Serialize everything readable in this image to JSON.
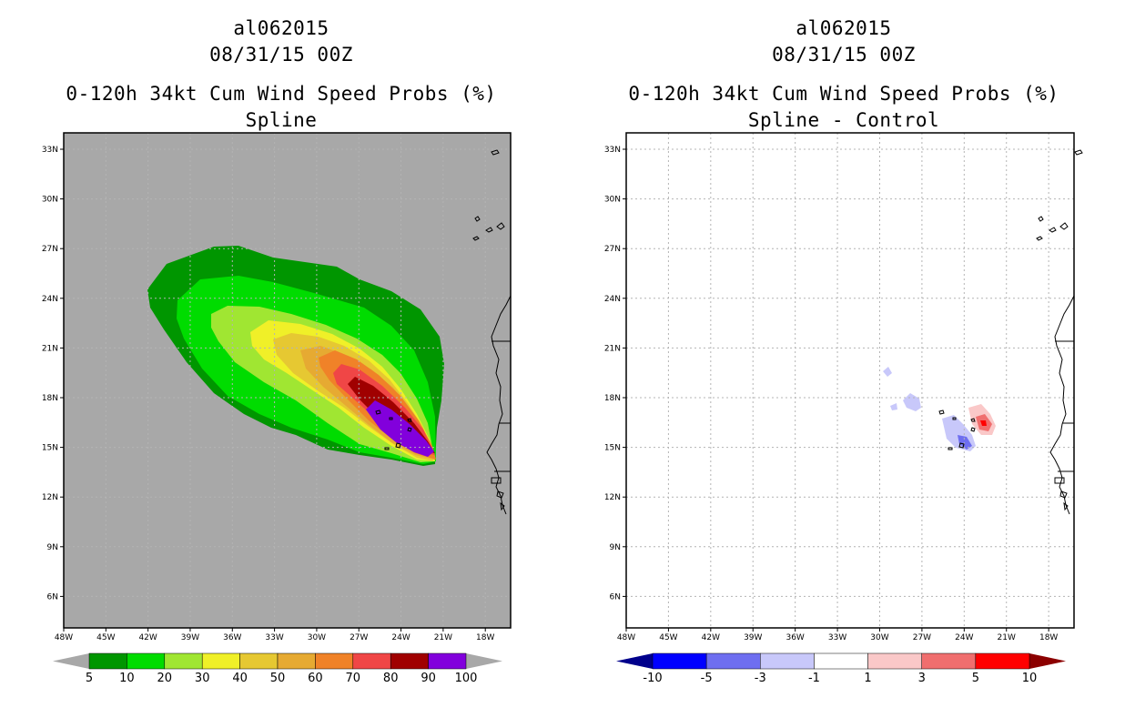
{
  "left": {
    "storm_id": "al062015",
    "datetime": "08/31/15 00Z",
    "title": "0-120h 34kt Cum Wind Speed Probs (%)",
    "subtitle": "Spline",
    "colorbar": {
      "labels": [
        "5",
        "10",
        "20",
        "30",
        "40",
        "50",
        "60",
        "70",
        "80",
        "90",
        "100"
      ],
      "colors": [
        "#a8a8a8",
        "#009600",
        "#00dc00",
        "#a0e632",
        "#f0f028",
        "#e6c832",
        "#e6aa32",
        "#f08228",
        "#f04646",
        "#a00000",
        "#8200dc",
        "#a8a8a8"
      ]
    }
  },
  "right": {
    "storm_id": "al062015",
    "datetime": "08/31/15 00Z",
    "title": "0-120h 34kt Cum Wind Speed Probs (%)",
    "subtitle": "Spline - Control",
    "colorbar": {
      "labels": [
        "-10",
        "-5",
        "-3",
        "-1",
        "1",
        "3",
        "5",
        "10"
      ],
      "colors": [
        "#00008c",
        "#0000ff",
        "#6e6ef0",
        "#c8c8fa",
        "#ffffff",
        "#fac8c8",
        "#f06e6e",
        "#ff0000",
        "#8c0000"
      ]
    }
  },
  "axes": {
    "lat_labels": [
      "33N",
      "30N",
      "27N",
      "24N",
      "21N",
      "18N",
      "15N",
      "12N",
      "9N",
      "6N"
    ],
    "lon_labels": [
      "48W",
      "45W",
      "42W",
      "39W",
      "36W",
      "33W",
      "30W",
      "27W",
      "24W",
      "21W",
      "18W"
    ]
  },
  "colors": {
    "map_background": "#a8a8a8",
    "grid": "#b4b4b4"
  }
}
